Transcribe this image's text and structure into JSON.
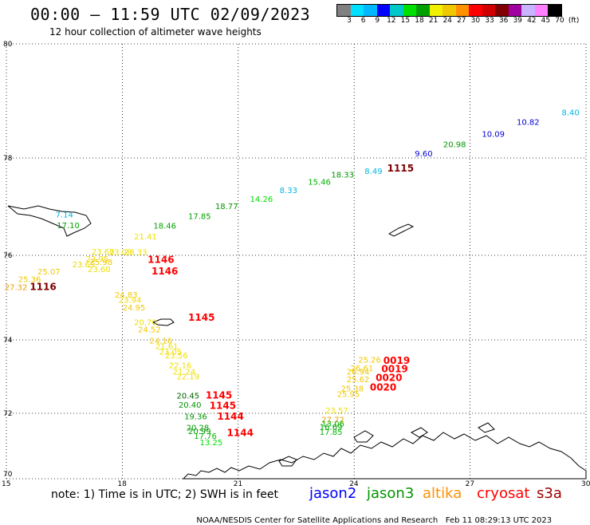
{
  "header": {
    "title": "00:00 — 11:59 UTC 02/09/2023",
    "subtitle": "12 hour collection of altimeter wave heights"
  },
  "colorbar": {
    "colors": [
      "#808080",
      "#00e0ff",
      "#00b8ff",
      "#0000ff",
      "#00c8c8",
      "#00e000",
      "#00a000",
      "#f0f000",
      "#f0c800",
      "#ff9000",
      "#ff0000",
      "#d00000",
      "#800000",
      "#a000a0",
      "#c8b4ff",
      "#ff80ff",
      "#000000"
    ],
    "labels": [
      "3",
      "6",
      "9",
      "12",
      "15",
      "18",
      "21",
      "24",
      "27",
      "30",
      "33",
      "36",
      "39",
      "42",
      "45",
      "70",
      "(ft)"
    ]
  },
  "axes": {
    "lat_labels": [
      "80",
      "78",
      "76",
      "74",
      "72",
      "70"
    ],
    "lon_labels": [
      "15",
      "18",
      "21",
      "24",
      "27",
      "30"
    ]
  },
  "observations": [
    {
      "lon": 29.6,
      "lat": 78.75,
      "v": "8.40",
      "c": "#00b4e6"
    },
    {
      "lon": 28.5,
      "lat": 78.58,
      "v": "10.82",
      "c": "#0000d8"
    },
    {
      "lon": 27.6,
      "lat": 78.37,
      "v": "10.09",
      "c": "#0000d8"
    },
    {
      "lon": 26.6,
      "lat": 78.19,
      "v": "20.98",
      "c": "#009600"
    },
    {
      "lon": 25.8,
      "lat": 78.03,
      "v": "9.60",
      "c": "#0000d8"
    },
    {
      "lon": 24.5,
      "lat": 77.67,
      "v": "8.49",
      "c": "#00b4e6"
    },
    {
      "lon": 23.7,
      "lat": 77.6,
      "v": "18.33",
      "c": "#009600"
    },
    {
      "lon": 23.1,
      "lat": 77.45,
      "v": "15.46",
      "c": "#00b400"
    },
    {
      "lon": 22.3,
      "lat": 77.28,
      "v": "8.33",
      "c": "#00b4e6"
    },
    {
      "lon": 21.6,
      "lat": 77.1,
      "v": "14.26",
      "c": "#00e000"
    },
    {
      "lon": 20.7,
      "lat": 76.95,
      "v": "18.77",
      "c": "#009600"
    },
    {
      "lon": 20.0,
      "lat": 76.75,
      "v": "17.85",
      "c": "#00a000"
    },
    {
      "lon": 19.1,
      "lat": 76.55,
      "v": "18.46",
      "c": "#00a000"
    },
    {
      "lon": 18.6,
      "lat": 76.33,
      "v": "21.41",
      "c": "#f0e000"
    },
    {
      "lon": 16.5,
      "lat": 76.78,
      "v": "7.14",
      "c": "#00b4e6"
    },
    {
      "lon": 16.6,
      "lat": 76.56,
      "v": "17.10",
      "c": "#00a000"
    },
    {
      "lon": 17.5,
      "lat": 76.02,
      "v": "23.69",
      "c": "#f0e000"
    },
    {
      "lon": 17.95,
      "lat": 76.01,
      "v": "23.09",
      "c": "#f0e000"
    },
    {
      "lon": 18.35,
      "lat": 76.01,
      "v": "23.33",
      "c": "#f0e000"
    },
    {
      "lon": 17.35,
      "lat": 75.85,
      "v": "23.95",
      "c": "#f0d800"
    },
    {
      "lon": 17.45,
      "lat": 75.77,
      "v": "25.98",
      "c": "#f0c800"
    },
    {
      "lon": 17.0,
      "lat": 75.72,
      "v": "23.69",
      "c": "#f0d800"
    },
    {
      "lon": 17.4,
      "lat": 75.6,
      "v": "23.60",
      "c": "#f0e000"
    },
    {
      "lon": 16.1,
      "lat": 75.55,
      "v": "25.07",
      "c": "#f0c800"
    },
    {
      "lon": 15.6,
      "lat": 75.37,
      "v": "25.36",
      "c": "#f0c800"
    },
    {
      "lon": 15.25,
      "lat": 75.18,
      "v": "27.32",
      "c": "#f0a000"
    },
    {
      "lon": 18.1,
      "lat": 75.0,
      "v": "24.83",
      "c": "#f0c800"
    },
    {
      "lon": 18.2,
      "lat": 74.88,
      "v": "23.94",
      "c": "#f0d800"
    },
    {
      "lon": 18.3,
      "lat": 74.7,
      "v": "24.95",
      "c": "#f0c800"
    },
    {
      "lon": 18.6,
      "lat": 74.35,
      "v": "20.70",
      "c": "#f0e000"
    },
    {
      "lon": 18.7,
      "lat": 74.18,
      "v": "24.52",
      "c": "#f0c800"
    },
    {
      "lon": 19.0,
      "lat": 73.9,
      "v": "24.16",
      "c": "#f0c800"
    },
    {
      "lon": 19.15,
      "lat": 73.75,
      "v": "21.61",
      "c": "#f0e000"
    },
    {
      "lon": 19.25,
      "lat": 73.6,
      "v": "23.05",
      "c": "#f0e000"
    },
    {
      "lon": 19.4,
      "lat": 73.5,
      "v": "23.56",
      "c": "#f0e000"
    },
    {
      "lon": 19.5,
      "lat": 73.23,
      "v": "22.16",
      "c": "#f0e000"
    },
    {
      "lon": 19.6,
      "lat": 73.05,
      "v": "21.24",
      "c": "#f0e000"
    },
    {
      "lon": 19.7,
      "lat": 72.92,
      "v": "22.19",
      "c": "#f0e000"
    },
    {
      "lon": 19.7,
      "lat": 72.4,
      "v": "20.45",
      "c": "#006400"
    },
    {
      "lon": 19.75,
      "lat": 72.15,
      "v": "20.40",
      "c": "#009600"
    },
    {
      "lon": 19.9,
      "lat": 71.82,
      "v": "19.36",
      "c": "#009600"
    },
    {
      "lon": 19.95,
      "lat": 71.48,
      "v": "20.28",
      "c": "#00a000"
    },
    {
      "lon": 20.0,
      "lat": 71.36,
      "v": "20.99",
      "c": "#009600"
    },
    {
      "lon": 20.15,
      "lat": 71.22,
      "v": "17.76",
      "c": "#00b400"
    },
    {
      "lon": 20.3,
      "lat": 71.02,
      "v": "13.25",
      "c": "#00e000"
    },
    {
      "lon": 24.4,
      "lat": 73.38,
      "v": "25.26",
      "c": "#f0c800"
    },
    {
      "lon": 24.2,
      "lat": 73.15,
      "v": "26.61",
      "c": "#f0c800"
    },
    {
      "lon": 24.1,
      "lat": 73.05,
      "v": "26.94",
      "c": "#f0c800"
    },
    {
      "lon": 24.1,
      "lat": 72.85,
      "v": "25.62",
      "c": "#f0c800"
    },
    {
      "lon": 23.95,
      "lat": 72.6,
      "v": "25.38",
      "c": "#f0c800"
    },
    {
      "lon": 23.85,
      "lat": 72.45,
      "v": "25.95",
      "c": "#f0c800"
    },
    {
      "lon": 23.55,
      "lat": 72.0,
      "v": "23.57",
      "c": "#f0e000"
    },
    {
      "lon": 23.45,
      "lat": 71.72,
      "v": "27.72",
      "c": "#f0a000"
    },
    {
      "lon": 23.45,
      "lat": 71.6,
      "v": "13.06",
      "c": "#00b400"
    },
    {
      "lon": 23.4,
      "lat": 71.5,
      "v": "16.69",
      "c": "#00a000"
    },
    {
      "lon": 23.4,
      "lat": 71.34,
      "v": "17.85",
      "c": "#00b400"
    }
  ],
  "time_labels": [
    {
      "lon": 25.2,
      "lat": 77.72,
      "t": "1115",
      "c": "#800000"
    },
    {
      "lon": 15.95,
      "lat": 75.18,
      "t": "1116",
      "c": "#800000"
    },
    {
      "lon": 19.0,
      "lat": 75.82,
      "t": "1146",
      "c": "#ff0000"
    },
    {
      "lon": 19.1,
      "lat": 75.55,
      "t": "1146",
      "c": "#ff0000"
    },
    {
      "lon": 20.05,
      "lat": 74.45,
      "t": "1145",
      "c": "#ff0000"
    },
    {
      "lon": 20.5,
      "lat": 72.4,
      "t": "1145",
      "c": "#ff0000"
    },
    {
      "lon": 20.6,
      "lat": 72.12,
      "t": "1145",
      "c": "#ff0000"
    },
    {
      "lon": 20.8,
      "lat": 71.8,
      "t": "1144",
      "c": "#ff0000"
    },
    {
      "lon": 21.05,
      "lat": 71.3,
      "t": "1144",
      "c": "#ff0000"
    },
    {
      "lon": 25.1,
      "lat": 73.35,
      "t": "0019",
      "c": "#ff0000"
    },
    {
      "lon": 25.05,
      "lat": 73.12,
      "t": "0019",
      "c": "#ff0000"
    },
    {
      "lon": 24.9,
      "lat": 72.88,
      "t": "0020",
      "c": "#ff0000"
    },
    {
      "lon": 24.75,
      "lat": 72.62,
      "t": "0020",
      "c": "#ff0000"
    }
  ],
  "footer": {
    "note": "note: 1) Time is in UTC; 2) SWH is in feet",
    "satellites": [
      {
        "name": "jason2",
        "color": "#0000ff"
      },
      {
        "name": "jason3",
        "color": "#009600"
      },
      {
        "name": "altika",
        "color": "#ff9000"
      },
      {
        "name": "cryosat",
        "color": "#ff0000"
      },
      {
        "name": "s3a",
        "color": "#a00000"
      }
    ],
    "credit": "NOAA/NESDIS Center for Satellite Applications and Research",
    "timestamp": "Feb 11 08:29:13 UTC 2023"
  }
}
